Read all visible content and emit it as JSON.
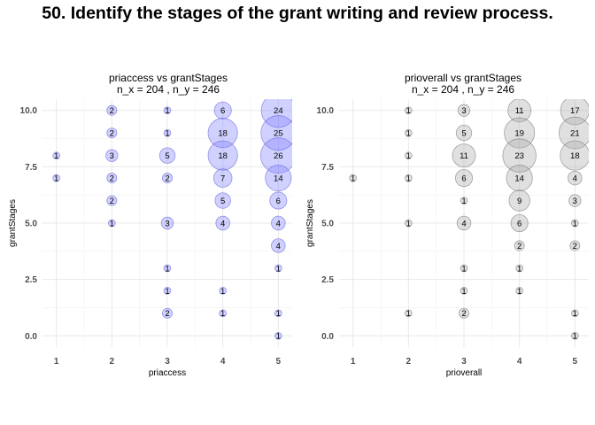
{
  "title": "50. Identify the stages of the grant writing and review process.",
  "chart_data": [
    {
      "type": "scatter",
      "title": "priaccess vs grantStages",
      "subtitle": "n_x = 204 , n_y = 246",
      "xlabel": "priaccess",
      "ylabel": "grantStages",
      "x_ticks": [
        1,
        2,
        3,
        4,
        5
      ],
      "y_ticks": [
        "0.0",
        "2.5",
        "5.0",
        "7.5",
        "10.0"
      ],
      "xlim": [
        0.75,
        5.25
      ],
      "ylim": [
        -0.5,
        10.5
      ],
      "grid": true,
      "fill_color": "#7b7bff",
      "stroke_color": "#5a5ad6",
      "points": [
        {
          "x": 1,
          "y": 8,
          "n": 1
        },
        {
          "x": 1,
          "y": 7,
          "n": 1
        },
        {
          "x": 2,
          "y": 10,
          "n": 2
        },
        {
          "x": 2,
          "y": 9,
          "n": 2
        },
        {
          "x": 2,
          "y": 8,
          "n": 3
        },
        {
          "x": 2,
          "y": 7,
          "n": 2
        },
        {
          "x": 2,
          "y": 6,
          "n": 2
        },
        {
          "x": 2,
          "y": 5,
          "n": 1
        },
        {
          "x": 3,
          "y": 10,
          "n": 1
        },
        {
          "x": 3,
          "y": 9,
          "n": 1
        },
        {
          "x": 3,
          "y": 8,
          "n": 5
        },
        {
          "x": 3,
          "y": 7,
          "n": 2
        },
        {
          "x": 3,
          "y": 5,
          "n": 3
        },
        {
          "x": 3,
          "y": 3,
          "n": 1
        },
        {
          "x": 3,
          "y": 2,
          "n": 1
        },
        {
          "x": 3,
          "y": 1,
          "n": 2
        },
        {
          "x": 4,
          "y": 10,
          "n": 6
        },
        {
          "x": 4,
          "y": 9,
          "n": 18
        },
        {
          "x": 4,
          "y": 8,
          "n": 18
        },
        {
          "x": 4,
          "y": 7,
          "n": 7
        },
        {
          "x": 4,
          "y": 6,
          "n": 5
        },
        {
          "x": 4,
          "y": 5,
          "n": 4
        },
        {
          "x": 4,
          "y": 2,
          "n": 1
        },
        {
          "x": 4,
          "y": 1,
          "n": 1
        },
        {
          "x": 5,
          "y": 10,
          "n": 24
        },
        {
          "x": 5,
          "y": 9,
          "n": 25
        },
        {
          "x": 5,
          "y": 8,
          "n": 26
        },
        {
          "x": 5,
          "y": 7,
          "n": 14
        },
        {
          "x": 5,
          "y": 6,
          "n": 6
        },
        {
          "x": 5,
          "y": 5,
          "n": 4
        },
        {
          "x": 5,
          "y": 4,
          "n": 4
        },
        {
          "x": 5,
          "y": 3,
          "n": 1
        },
        {
          "x": 5,
          "y": 1,
          "n": 1
        },
        {
          "x": 5,
          "y": 0,
          "n": 1
        }
      ]
    },
    {
      "type": "scatter",
      "title": "prioverall vs grantStages",
      "subtitle": "n_x = 204 , n_y = 246",
      "xlabel": "prioverall",
      "ylabel": "grantStages",
      "x_ticks": [
        1,
        2,
        3,
        4,
        5
      ],
      "y_ticks": [
        "0.0",
        "2.5",
        "5.0",
        "7.5",
        "10.0"
      ],
      "xlim": [
        0.75,
        5.25
      ],
      "ylim": [
        -0.5,
        10.5
      ],
      "grid": true,
      "fill_color": "#a6a6a6",
      "stroke_color": "#6e6e6e",
      "points": [
        {
          "x": 1,
          "y": 7,
          "n": 1
        },
        {
          "x": 2,
          "y": 10,
          "n": 1
        },
        {
          "x": 2,
          "y": 9,
          "n": 1
        },
        {
          "x": 2,
          "y": 8,
          "n": 1
        },
        {
          "x": 2,
          "y": 7,
          "n": 1
        },
        {
          "x": 2,
          "y": 5,
          "n": 1
        },
        {
          "x": 2,
          "y": 1,
          "n": 1
        },
        {
          "x": 3,
          "y": 10,
          "n": 3
        },
        {
          "x": 3,
          "y": 9,
          "n": 5
        },
        {
          "x": 3,
          "y": 8,
          "n": 11
        },
        {
          "x": 3,
          "y": 7,
          "n": 6
        },
        {
          "x": 3,
          "y": 6,
          "n": 1
        },
        {
          "x": 3,
          "y": 5,
          "n": 4
        },
        {
          "x": 3,
          "y": 3,
          "n": 1
        },
        {
          "x": 3,
          "y": 2,
          "n": 1
        },
        {
          "x": 3,
          "y": 1,
          "n": 2
        },
        {
          "x": 4,
          "y": 10,
          "n": 11
        },
        {
          "x": 4,
          "y": 9,
          "n": 19
        },
        {
          "x": 4,
          "y": 8,
          "n": 23
        },
        {
          "x": 4,
          "y": 7,
          "n": 14
        },
        {
          "x": 4,
          "y": 6,
          "n": 9
        },
        {
          "x": 4,
          "y": 5,
          "n": 6
        },
        {
          "x": 4,
          "y": 4,
          "n": 2
        },
        {
          "x": 4,
          "y": 3,
          "n": 1
        },
        {
          "x": 4,
          "y": 2,
          "n": 1
        },
        {
          "x": 5,
          "y": 10,
          "n": 17
        },
        {
          "x": 5,
          "y": 9,
          "n": 21
        },
        {
          "x": 5,
          "y": 8,
          "n": 18
        },
        {
          "x": 5,
          "y": 7,
          "n": 4
        },
        {
          "x": 5,
          "y": 6,
          "n": 3
        },
        {
          "x": 5,
          "y": 5,
          "n": 1
        },
        {
          "x": 5,
          "y": 4,
          "n": 2
        },
        {
          "x": 5,
          "y": 1,
          "n": 1
        },
        {
          "x": 5,
          "y": 0,
          "n": 1
        }
      ]
    }
  ]
}
